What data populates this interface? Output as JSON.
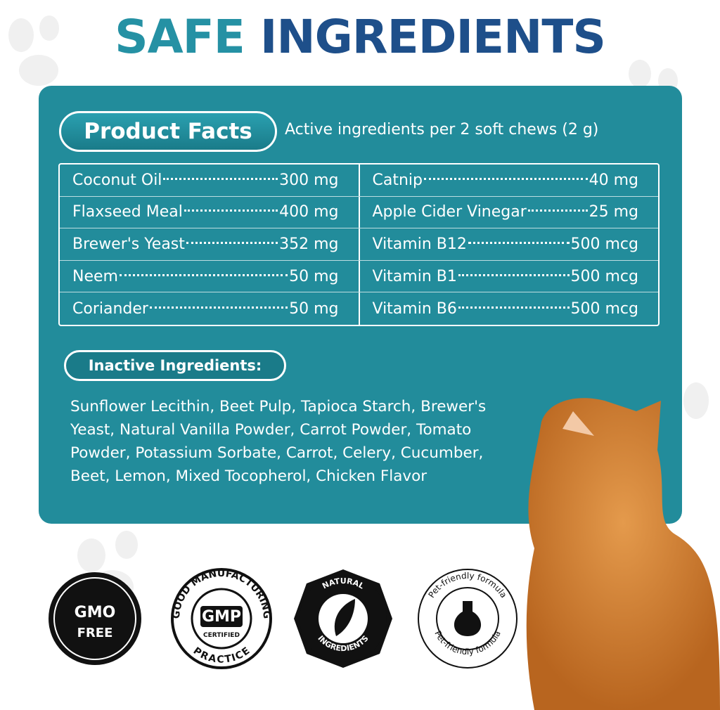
{
  "title": {
    "first": "SAFE",
    "second": "INGREDIENTS"
  },
  "facts": {
    "label": "Product Facts",
    "note": "Active ingredients per 2 soft chews (2 g)",
    "rows": [
      [
        {
          "name": "Coconut Oil",
          "amount": "300 mg"
        },
        {
          "name": "Catnip",
          "amount": "40 mg"
        }
      ],
      [
        {
          "name": "Flaxseed Meal",
          "amount": "400 mg"
        },
        {
          "name": "Apple Cider Vinegar",
          "amount": "25 mg"
        }
      ],
      [
        {
          "name": "Brewer's Yeast",
          "amount": "352 mg"
        },
        {
          "name": "Vitamin B12",
          "amount": "500 mcg"
        }
      ],
      [
        {
          "name": "Neem",
          "amount": "50 mg"
        },
        {
          "name": "Vitamin B1",
          "amount": "500 mcg"
        }
      ],
      [
        {
          "name": "Coriander",
          "amount": "50 mg"
        },
        {
          "name": "Vitamin B6",
          "amount": "500 mcg"
        }
      ]
    ]
  },
  "inactive": {
    "label": "Inactive Ingredients:",
    "lines": [
      "Sunflower Lecithin, Beet Pulp, Tapioca Starch, Brewer's",
      "Yeast, Natural Vanilla Powder, Carrot Powder, Tomato",
      "Powder, Potassium Sorbate, Carrot, Celery, Cucumber,",
      "Beet, Lemon, Mixed Tocopherol, Chicken Flavor"
    ]
  },
  "badges": {
    "gmo": {
      "line1": "GMO",
      "line2": "FREE"
    },
    "gmp": {
      "arc_top": "GOOD MANUFACTURING",
      "center": "GMP",
      "sub": "CERTIFIED",
      "arc_bottom": "PRACTICE"
    },
    "natural": {
      "arc_top": "NATURAL",
      "arc_bottom": "INGREDIENTS"
    },
    "pet": {
      "arc_top": "Pet-friendly formula",
      "arc_bottom": "Pet-friendly formula"
    }
  }
}
